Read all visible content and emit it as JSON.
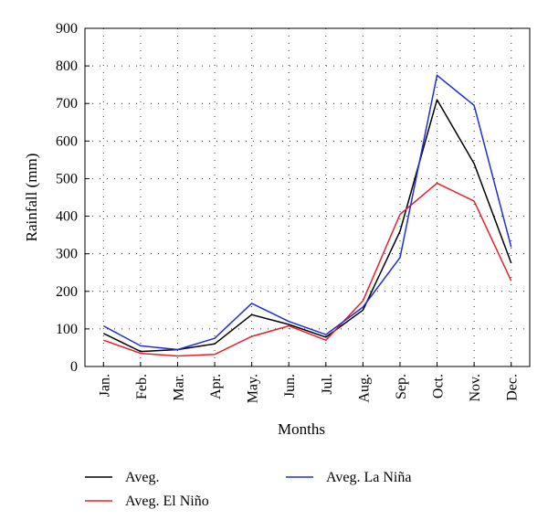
{
  "chart_data": {
    "type": "line",
    "xlabel": "Months",
    "ylabel": "Rainfall (mm)",
    "ylim": [
      0,
      900
    ],
    "yticks": [
      0,
      100,
      200,
      300,
      400,
      500,
      600,
      700,
      800,
      900
    ],
    "categories": [
      "Jan.",
      "Feb.",
      "Mar.",
      "Apr.",
      "May.",
      "Jun.",
      "Jul.",
      "Aug.",
      "Sep.",
      "Oct.",
      "Nov.",
      "Dec."
    ],
    "grid": "dotted",
    "legend_position": "bottom",
    "series": [
      {
        "name": "Aveg.",
        "color": "#000000",
        "values": [
          88,
          40,
          45,
          60,
          138,
          112,
          78,
          150,
          360,
          710,
          540,
          275
        ]
      },
      {
        "name": "Aveg. El Niño",
        "color": "#e8202a",
        "values": [
          70,
          35,
          28,
          32,
          80,
          108,
          70,
          175,
          405,
          488,
          440,
          228
        ]
      },
      {
        "name": "Aveg. La Niña",
        "color": "#1f2fd6",
        "values": [
          108,
          55,
          45,
          75,
          168,
          120,
          85,
          158,
          290,
          775,
          695,
          318
        ]
      }
    ]
  }
}
